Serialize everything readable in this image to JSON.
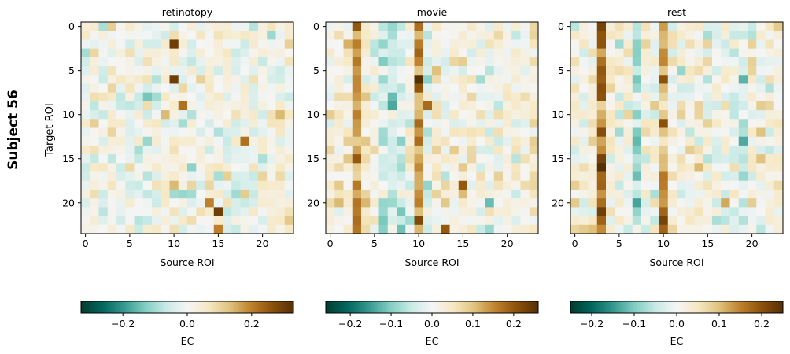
{
  "figure": {
    "row_label": "Subject 56",
    "ylabel": "Target ROI",
    "xlabel": "Source ROI",
    "colorbar_label": "EC",
    "colormap": "BrBG_r",
    "colormap_stops": [
      "#003c30",
      "#01665e",
      "#35978f",
      "#80cdc1",
      "#c7eae5",
      "#f5f5f5",
      "#f6e8c3",
      "#dfc27d",
      "#bf812d",
      "#8c510a",
      "#543005"
    ],
    "frame_color": "#000000",
    "background": "#ffffff"
  },
  "chart_data": [
    {
      "type": "heatmap",
      "title": "retinotopy",
      "xlabel": "Source ROI",
      "ylabel": "Target ROI",
      "rows": 24,
      "cols": 24,
      "xticks": [
        0,
        5,
        10,
        15,
        20
      ],
      "yticks": [
        0,
        5,
        10,
        15,
        20
      ],
      "vmin": -0.33,
      "vmax": 0.33,
      "colorbar_ticks": [
        -0.2,
        0.0,
        0.2
      ],
      "colorbar_tick_labels": [
        "−0.2",
        "0.0",
        "0.2"
      ],
      "column_bias": [
        0.01,
        0.02,
        0,
        0.02,
        0,
        0.01,
        0,
        -0.01,
        0,
        0.01,
        0.03,
        0,
        0.01,
        0,
        0.02,
        0.02,
        0.01,
        0,
        0.01,
        0,
        0.02,
        0.01,
        0.03,
        0.02
      ],
      "highlights": [
        [
          2,
          10,
          0.3
        ],
        [
          6,
          10,
          0.3
        ],
        [
          8,
          7,
          -0.14
        ],
        [
          8,
          8,
          -0.1
        ],
        [
          9,
          11,
          0.22
        ],
        [
          10,
          9,
          0.14
        ],
        [
          13,
          18,
          0.22
        ],
        [
          16,
          12,
          -0.12
        ],
        [
          19,
          10,
          -0.1
        ],
        [
          19,
          11,
          -0.11
        ],
        [
          19,
          12,
          -0.1
        ],
        [
          20,
          14,
          0.2
        ],
        [
          21,
          15,
          0.3
        ],
        [
          23,
          15,
          0.2
        ],
        [
          22,
          23,
          0.12
        ],
        [
          17,
          20,
          0.1
        ],
        [
          12,
          3,
          0.1
        ]
      ],
      "seed": 7,
      "noise": 0.065
    },
    {
      "type": "heatmap",
      "title": "movie",
      "xlabel": "Source ROI",
      "ylabel": "",
      "rows": 24,
      "cols": 24,
      "xticks": [
        0,
        5,
        10,
        15,
        20
      ],
      "yticks": [
        0,
        5,
        10,
        15,
        20
      ],
      "vmin": -0.26,
      "vmax": 0.26,
      "colorbar_ticks": [
        -0.2,
        -0.1,
        0.0,
        0.1,
        0.2
      ],
      "colorbar_tick_labels": [
        "−0.2",
        "−0.1",
        "0.0",
        "0.1",
        "0.2"
      ],
      "column_bias": [
        0.02,
        0.03,
        0.04,
        0.13,
        0.04,
        0.01,
        -0.04,
        -0.05,
        -0.04,
        0.01,
        0.13,
        -0.02,
        0.03,
        0.01,
        0.03,
        0.02,
        0.01,
        0,
        -0.01,
        0.02,
        0.02,
        0.01,
        0.02,
        0.03
      ],
      "highlights": [
        [
          0,
          3,
          0.2
        ],
        [
          6,
          10,
          0.26
        ],
        [
          9,
          11,
          0.18
        ],
        [
          8,
          7,
          -0.12
        ],
        [
          9,
          7,
          -0.14
        ],
        [
          11,
          10,
          0.18
        ],
        [
          18,
          15,
          0.2
        ],
        [
          20,
          18,
          -0.12
        ],
        [
          22,
          10,
          0.22
        ],
        [
          23,
          13,
          0.2
        ],
        [
          2,
          10,
          0.16
        ],
        [
          15,
          3,
          0.2
        ]
      ],
      "seed": 19,
      "noise": 0.05
    },
    {
      "type": "heatmap",
      "title": "rest",
      "xlabel": "Source ROI",
      "ylabel": "",
      "rows": 24,
      "cols": 24,
      "xticks": [
        0,
        5,
        10,
        15,
        20
      ],
      "yticks": [
        0,
        5,
        10,
        15,
        20
      ],
      "vmin": -0.25,
      "vmax": 0.25,
      "colorbar_ticks": [
        -0.2,
        -0.1,
        0.0,
        0.1,
        0.2
      ],
      "colorbar_tick_labels": [
        "−0.2",
        "−0.1",
        "0.0",
        "0.1",
        "0.2"
      ],
      "column_bias": [
        0.02,
        0.01,
        0.03,
        0.15,
        0.04,
        0.01,
        0.02,
        -0.07,
        0.01,
        0.01,
        0.12,
        0.02,
        0.01,
        0.02,
        0.02,
        0.01,
        0,
        0.01,
        -0.01,
        -0.05,
        0.02,
        0.01,
        0.02,
        0.02
      ],
      "highlights": [
        [
          0,
          3,
          0.22
        ],
        [
          6,
          10,
          0.2
        ],
        [
          11,
          10,
          0.2
        ],
        [
          14,
          7,
          -0.1
        ],
        [
          15,
          3,
          0.22
        ],
        [
          16,
          3,
          0.25
        ],
        [
          22,
          10,
          0.22
        ],
        [
          23,
          10,
          0.18
        ],
        [
          8,
          3,
          0.2
        ],
        [
          20,
          17,
          0.12
        ]
      ],
      "seed": 31,
      "noise": 0.05
    }
  ]
}
